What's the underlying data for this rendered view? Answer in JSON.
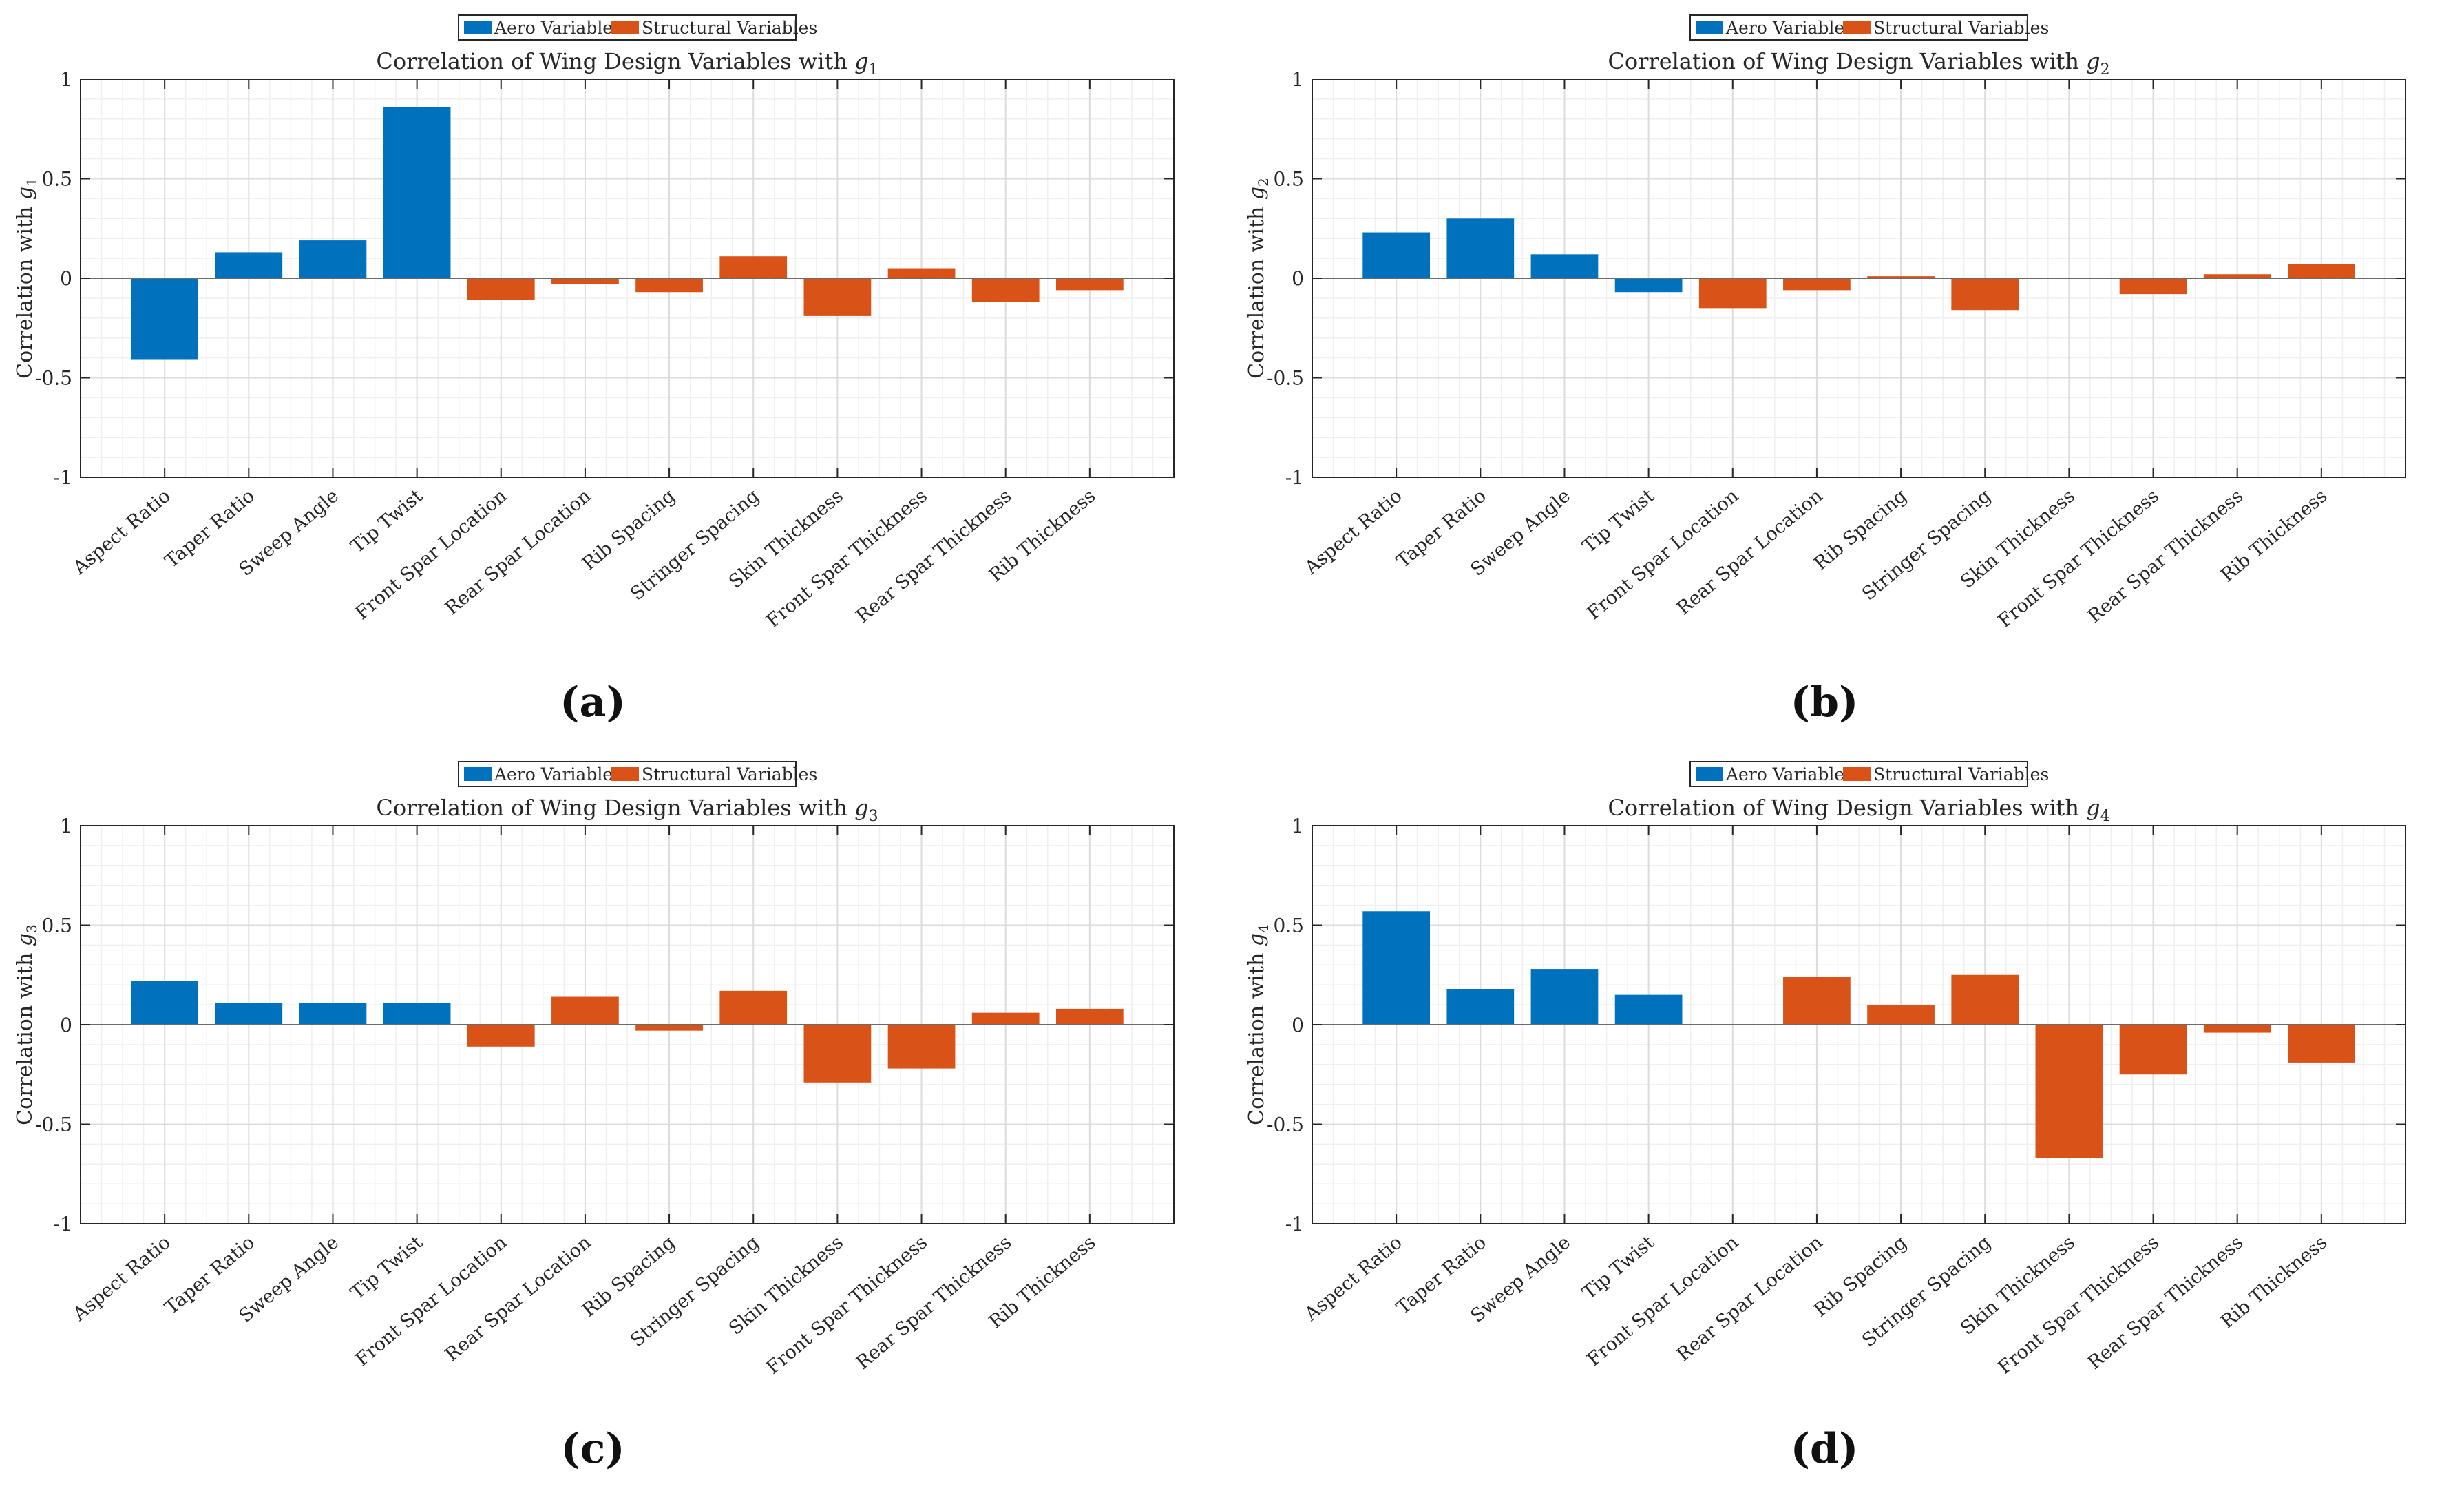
{
  "legend": {
    "aero": "Aero Variables",
    "structural": "Structural Variables"
  },
  "colors": {
    "aero": "#0072BD",
    "structural": "#D95319"
  },
  "chart_data": [
    {
      "type": "bar",
      "panel_label": "(a)",
      "title": "Correlation of Wing Design Variables with",
      "title_symbol": "g",
      "title_subscript": "1",
      "ylabel": "Correlation with",
      "ylabel_symbol": "g",
      "ylabel_subscript": "1",
      "ylim": [
        -1,
        1
      ],
      "yticks": [
        "-1",
        "-0.5",
        "0",
        "0.5",
        "1"
      ],
      "grid": true,
      "legend_position": "top-center",
      "categories": [
        "Aspect Ratio",
        "Taper Ratio",
        "Sweep Angle",
        "Tip Twist",
        "Front Spar Location",
        "Rear Spar Location",
        "Rib Spacing",
        "Stringer Spacing",
        "Skin Thickness",
        "Front Spar Thickness",
        "Rear Spar Thickness",
        "Rib Thickness"
      ],
      "groups": [
        "aero",
        "aero",
        "aero",
        "aero",
        "structural",
        "structural",
        "structural",
        "structural",
        "structural",
        "structural",
        "structural",
        "structural"
      ],
      "values": [
        -0.41,
        0.13,
        0.19,
        0.86,
        -0.11,
        -0.03,
        -0.07,
        0.11,
        -0.19,
        0.05,
        -0.12,
        -0.06
      ]
    },
    {
      "type": "bar",
      "panel_label": "(b)",
      "title": "Correlation of Wing Design Variables with",
      "title_symbol": "g",
      "title_subscript": "2",
      "ylabel": "Correlation with",
      "ylabel_symbol": "g",
      "ylabel_subscript": "2",
      "ylim": [
        -1,
        1
      ],
      "yticks": [
        "-1",
        "-0.5",
        "0",
        "0.5",
        "1"
      ],
      "grid": true,
      "legend_position": "top-center",
      "categories": [
        "Aspect Ratio",
        "Taper Ratio",
        "Sweep Angle",
        "Tip Twist",
        "Front Spar Location",
        "Rear Spar Location",
        "Rib Spacing",
        "Stringer Spacing",
        "Skin Thickness",
        "Front Spar Thickness",
        "Rear Spar Thickness",
        "Rib Thickness"
      ],
      "groups": [
        "aero",
        "aero",
        "aero",
        "aero",
        "structural",
        "structural",
        "structural",
        "structural",
        "structural",
        "structural",
        "structural",
        "structural"
      ],
      "values": [
        0.23,
        0.3,
        0.12,
        -0.07,
        -0.15,
        -0.06,
        0.01,
        -0.16,
        0.0,
        -0.08,
        0.02,
        0.07
      ]
    },
    {
      "type": "bar",
      "panel_label": "(c)",
      "title": "Correlation of Wing Design Variables with",
      "title_symbol": "g",
      "title_subscript": "3",
      "ylabel": "Correlation with",
      "ylabel_symbol": "g",
      "ylabel_subscript": "3",
      "ylim": [
        -1,
        1
      ],
      "yticks": [
        "-1",
        "-0.5",
        "0",
        "0.5",
        "1"
      ],
      "grid": true,
      "legend_position": "top-center",
      "categories": [
        "Aspect Ratio",
        "Taper Ratio",
        "Sweep Angle",
        "Tip Twist",
        "Front Spar Location",
        "Rear Spar Location",
        "Rib Spacing",
        "Stringer Spacing",
        "Skin Thickness",
        "Front Spar Thickness",
        "Rear Spar Thickness",
        "Rib Thickness"
      ],
      "groups": [
        "aero",
        "aero",
        "aero",
        "aero",
        "structural",
        "structural",
        "structural",
        "structural",
        "structural",
        "structural",
        "structural",
        "structural"
      ],
      "values": [
        0.22,
        0.11,
        0.11,
        0.11,
        -0.11,
        0.14,
        -0.03,
        0.17,
        -0.29,
        -0.22,
        0.06,
        0.08
      ]
    },
    {
      "type": "bar",
      "panel_label": "(d)",
      "title": "Correlation of Wing Design Variables with",
      "title_symbol": "g",
      "title_subscript": "4",
      "ylabel": "Correlation with",
      "ylabel_symbol": "g",
      "ylabel_subscript": "4",
      "ylim": [
        -1,
        1
      ],
      "yticks": [
        "-1",
        "-0.5",
        "0",
        "0.5",
        "1"
      ],
      "grid": true,
      "legend_position": "top-center",
      "categories": [
        "Aspect Ratio",
        "Taper Ratio",
        "Sweep Angle",
        "Tip Twist",
        "Front Spar Location",
        "Rear Spar Location",
        "Rib Spacing",
        "Stringer Spacing",
        "Skin Thickness",
        "Front Spar Thickness",
        "Rear Spar Thickness",
        "Rib Thickness"
      ],
      "groups": [
        "aero",
        "aero",
        "aero",
        "aero",
        "structural",
        "structural",
        "structural",
        "structural",
        "structural",
        "structural",
        "structural",
        "structural"
      ],
      "values": [
        0.57,
        0.18,
        0.28,
        0.15,
        0.0,
        0.24,
        0.1,
        0.25,
        -0.67,
        -0.25,
        -0.04,
        -0.19
      ]
    }
  ]
}
